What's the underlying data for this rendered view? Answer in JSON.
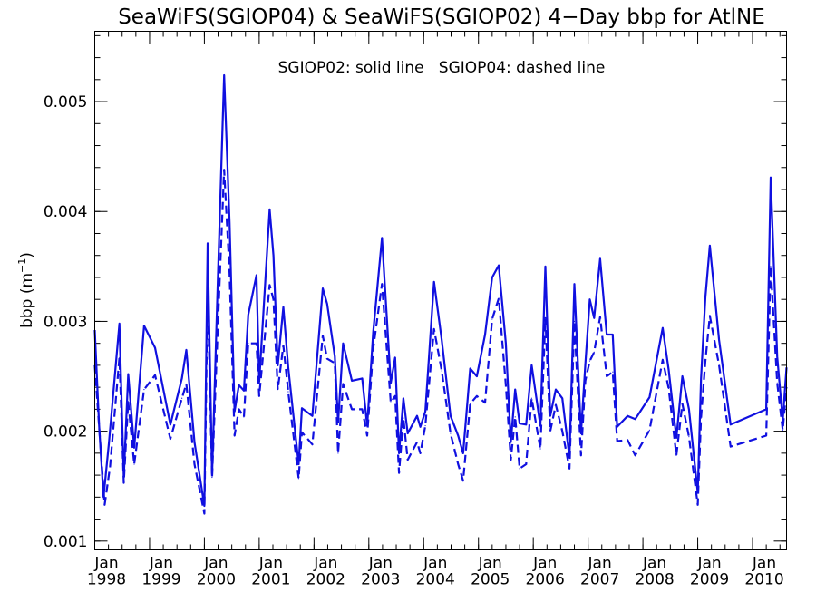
{
  "chart_data": {
    "type": "line",
    "title": "SeaWiFS(SGIOP04) & SeaWiFS(SGIOP02) 4−Day bbp for AtlNE",
    "annotation": "SGIOP02: solid line   SGIOP04: dashed line",
    "ylabel_main": "bbp (m",
    "ylabel_sup": "−1",
    "ylabel_end": ")",
    "ylim": [
      0.00092,
      0.00564
    ],
    "xlim": [
      1998.0,
      2010.62
    ],
    "y_ticks": [
      {
        "value": 0.001,
        "label": "0.001"
      },
      {
        "value": 0.002,
        "label": "0.002"
      },
      {
        "value": 0.003,
        "label": "0.003"
      },
      {
        "value": 0.004,
        "label": "0.004"
      },
      {
        "value": 0.005,
        "label": "0.005"
      }
    ],
    "x_ticks": [
      {
        "value": 1998,
        "month": "Jan",
        "year": "1998"
      },
      {
        "value": 1999,
        "month": "Jan",
        "year": "1999"
      },
      {
        "value": 2000,
        "month": "Jan",
        "year": "2000"
      },
      {
        "value": 2001,
        "month": "Jan",
        "year": "2001"
      },
      {
        "value": 2002,
        "month": "Jan",
        "year": "2002"
      },
      {
        "value": 2003,
        "month": "Jan",
        "year": "2003"
      },
      {
        "value": 2004,
        "month": "Jan",
        "year": "2004"
      },
      {
        "value": 2005,
        "month": "Jan",
        "year": "2005"
      },
      {
        "value": 2006,
        "month": "Jan",
        "year": "2006"
      },
      {
        "value": 2007,
        "month": "Jan",
        "year": "2007"
      },
      {
        "value": 2008,
        "month": "Jan",
        "year": "2008"
      },
      {
        "value": 2009,
        "month": "Jan",
        "year": "2009"
      },
      {
        "value": 2010,
        "month": "Jan",
        "year": "2010"
      }
    ],
    "minor_x_per_year": 4,
    "minor_y_step": 0.0002,
    "line_color": "#1010e0",
    "series": [
      {
        "style": "solid",
        "points": [
          [
            1998.0,
            0.00292
          ],
          [
            1998.08,
            0.00205
          ],
          [
            1998.16,
            0.0014
          ],
          [
            1998.26,
            0.0019
          ],
          [
            1998.45,
            0.00298
          ],
          [
            1998.53,
            0.00158
          ],
          [
            1998.61,
            0.00252
          ],
          [
            1998.72,
            0.00185
          ],
          [
            1998.9,
            0.00296
          ],
          [
            1999.1,
            0.00276
          ],
          [
            1999.38,
            0.00206
          ],
          [
            1999.59,
            0.00248
          ],
          [
            1999.67,
            0.00274
          ],
          [
            1999.82,
            0.0019
          ],
          [
            2000.0,
            0.00132
          ],
          [
            2000.06,
            0.00371
          ],
          [
            2000.14,
            0.0016
          ],
          [
            2000.24,
            0.00328
          ],
          [
            2000.36,
            0.00524
          ],
          [
            2000.46,
            0.0039
          ],
          [
            2000.55,
            0.00218
          ],
          [
            2000.63,
            0.00242
          ],
          [
            2000.72,
            0.00237
          ],
          [
            2000.8,
            0.00306
          ],
          [
            2000.95,
            0.00342
          ],
          [
            2001.0,
            0.00245
          ],
          [
            2001.19,
            0.00402
          ],
          [
            2001.26,
            0.0036
          ],
          [
            2001.34,
            0.0026
          ],
          [
            2001.44,
            0.00313
          ],
          [
            2001.53,
            0.00258
          ],
          [
            2001.72,
            0.0017
          ],
          [
            2001.78,
            0.00221
          ],
          [
            2001.97,
            0.00214
          ],
          [
            2002.16,
            0.0033
          ],
          [
            2002.24,
            0.00316
          ],
          [
            2002.38,
            0.00268
          ],
          [
            2002.44,
            0.00208
          ],
          [
            2002.53,
            0.0028
          ],
          [
            2002.69,
            0.00246
          ],
          [
            2002.88,
            0.00248
          ],
          [
            2002.97,
            0.00205
          ],
          [
            2003.08,
            0.0029
          ],
          [
            2003.24,
            0.00376
          ],
          [
            2003.4,
            0.00244
          ],
          [
            2003.48,
            0.00267
          ],
          [
            2003.55,
            0.0018
          ],
          [
            2003.63,
            0.0023
          ],
          [
            2003.71,
            0.00198
          ],
          [
            2003.88,
            0.00214
          ],
          [
            2003.94,
            0.00204
          ],
          [
            2004.03,
            0.00218
          ],
          [
            2004.19,
            0.00336
          ],
          [
            2004.33,
            0.00283
          ],
          [
            2004.49,
            0.00214
          ],
          [
            2004.63,
            0.00196
          ],
          [
            2004.72,
            0.0018
          ],
          [
            2004.85,
            0.00257
          ],
          [
            2004.97,
            0.0025
          ],
          [
            2005.12,
            0.00288
          ],
          [
            2005.25,
            0.0034
          ],
          [
            2005.37,
            0.00351
          ],
          [
            2005.5,
            0.0028
          ],
          [
            2005.59,
            0.0019
          ],
          [
            2005.67,
            0.00238
          ],
          [
            2005.75,
            0.00207
          ],
          [
            2005.87,
            0.00206
          ],
          [
            2005.97,
            0.0026
          ],
          [
            2006.13,
            0.00205
          ],
          [
            2006.22,
            0.0035
          ],
          [
            2006.31,
            0.00214
          ],
          [
            2006.41,
            0.00238
          ],
          [
            2006.53,
            0.0023
          ],
          [
            2006.66,
            0.00176
          ],
          [
            2006.75,
            0.00334
          ],
          [
            2006.87,
            0.00198
          ],
          [
            2006.95,
            0.00261
          ],
          [
            2007.03,
            0.0032
          ],
          [
            2007.11,
            0.00303
          ],
          [
            2007.22,
            0.00357
          ],
          [
            2007.34,
            0.00288
          ],
          [
            2007.45,
            0.00288
          ],
          [
            2007.53,
            0.00204
          ],
          [
            2007.72,
            0.00214
          ],
          [
            2007.86,
            0.00211
          ],
          [
            2008.12,
            0.00231
          ],
          [
            2008.36,
            0.00294
          ],
          [
            2008.47,
            0.00256
          ],
          [
            2008.61,
            0.00194
          ],
          [
            2008.72,
            0.0025
          ],
          [
            2008.84,
            0.0022
          ],
          [
            2009.0,
            0.00144
          ],
          [
            2009.06,
            0.00248
          ],
          [
            2009.14,
            0.00322
          ],
          [
            2009.22,
            0.00369
          ],
          [
            2009.39,
            0.00283
          ],
          [
            2009.6,
            0.00206
          ],
          [
            2010.25,
            0.0022
          ],
          [
            2010.33,
            0.00431
          ],
          [
            2010.45,
            0.00268
          ],
          [
            2010.55,
            0.0021
          ],
          [
            2010.62,
            0.00258
          ]
        ]
      },
      {
        "style": "dashed",
        "points": [
          [
            1998.0,
            0.0026
          ],
          [
            1998.1,
            0.0019
          ],
          [
            1998.18,
            0.00133
          ],
          [
            1998.28,
            0.00168
          ],
          [
            1998.45,
            0.00267
          ],
          [
            1998.53,
            0.00153
          ],
          [
            1998.61,
            0.00227
          ],
          [
            1998.72,
            0.0017
          ],
          [
            1998.9,
            0.00238
          ],
          [
            1999.1,
            0.00251
          ],
          [
            1999.38,
            0.00193
          ],
          [
            1999.59,
            0.0023
          ],
          [
            1999.67,
            0.00243
          ],
          [
            1999.82,
            0.0017
          ],
          [
            2000.0,
            0.00125
          ],
          [
            2000.06,
            0.0033
          ],
          [
            2000.14,
            0.00158
          ],
          [
            2000.24,
            0.00288
          ],
          [
            2000.36,
            0.00438
          ],
          [
            2000.46,
            0.00344
          ],
          [
            2000.55,
            0.00196
          ],
          [
            2000.63,
            0.0022
          ],
          [
            2000.72,
            0.00213
          ],
          [
            2000.8,
            0.0028
          ],
          [
            2000.95,
            0.0028
          ],
          [
            2001.0,
            0.00232
          ],
          [
            2001.19,
            0.00333
          ],
          [
            2001.26,
            0.0032
          ],
          [
            2001.34,
            0.00238
          ],
          [
            2001.44,
            0.00278
          ],
          [
            2001.53,
            0.00236
          ],
          [
            2001.72,
            0.00157
          ],
          [
            2001.78,
            0.00199
          ],
          [
            2001.97,
            0.00188
          ],
          [
            2002.16,
            0.00287
          ],
          [
            2002.24,
            0.00266
          ],
          [
            2002.38,
            0.00262
          ],
          [
            2002.44,
            0.0018
          ],
          [
            2002.53,
            0.00243
          ],
          [
            2002.69,
            0.0022
          ],
          [
            2002.88,
            0.0022
          ],
          [
            2002.97,
            0.00196
          ],
          [
            2003.08,
            0.00275
          ],
          [
            2003.24,
            0.00334
          ],
          [
            2003.4,
            0.00226
          ],
          [
            2003.48,
            0.00232
          ],
          [
            2003.55,
            0.00162
          ],
          [
            2003.63,
            0.00212
          ],
          [
            2003.71,
            0.00174
          ],
          [
            2003.88,
            0.0019
          ],
          [
            2003.94,
            0.0018
          ],
          [
            2004.03,
            0.00205
          ],
          [
            2004.19,
            0.00293
          ],
          [
            2004.33,
            0.00255
          ],
          [
            2004.49,
            0.00198
          ],
          [
            2004.63,
            0.0017
          ],
          [
            2004.72,
            0.00155
          ],
          [
            2004.85,
            0.00225
          ],
          [
            2004.97,
            0.00232
          ],
          [
            2005.12,
            0.00226
          ],
          [
            2005.25,
            0.00302
          ],
          [
            2005.37,
            0.00321
          ],
          [
            2005.5,
            0.00242
          ],
          [
            2005.59,
            0.00174
          ],
          [
            2005.67,
            0.00213
          ],
          [
            2005.75,
            0.00166
          ],
          [
            2005.87,
            0.0017
          ],
          [
            2005.97,
            0.0023
          ],
          [
            2006.13,
            0.00184
          ],
          [
            2006.22,
            0.00303
          ],
          [
            2006.31,
            0.002
          ],
          [
            2006.41,
            0.00224
          ],
          [
            2006.53,
            0.002
          ],
          [
            2006.66,
            0.00166
          ],
          [
            2006.75,
            0.003
          ],
          [
            2006.87,
            0.00178
          ],
          [
            2006.95,
            0.00246
          ],
          [
            2007.03,
            0.00264
          ],
          [
            2007.11,
            0.00272
          ],
          [
            2007.22,
            0.00304
          ],
          [
            2007.34,
            0.0025
          ],
          [
            2007.45,
            0.00254
          ],
          [
            2007.53,
            0.00191
          ],
          [
            2007.72,
            0.00192
          ],
          [
            2007.86,
            0.00178
          ],
          [
            2008.12,
            0.00201
          ],
          [
            2008.36,
            0.00265
          ],
          [
            2008.47,
            0.00239
          ],
          [
            2008.61,
            0.00178
          ],
          [
            2008.72,
            0.00225
          ],
          [
            2008.84,
            0.00195
          ],
          [
            2009.0,
            0.00133
          ],
          [
            2009.06,
            0.00212
          ],
          [
            2009.14,
            0.00264
          ],
          [
            2009.22,
            0.00305
          ],
          [
            2009.39,
            0.0026
          ],
          [
            2009.6,
            0.00186
          ],
          [
            2010.25,
            0.00196
          ],
          [
            2010.33,
            0.0035
          ],
          [
            2010.45,
            0.00244
          ],
          [
            2010.55,
            0.00201
          ],
          [
            2010.62,
            0.0024
          ]
        ]
      }
    ]
  }
}
